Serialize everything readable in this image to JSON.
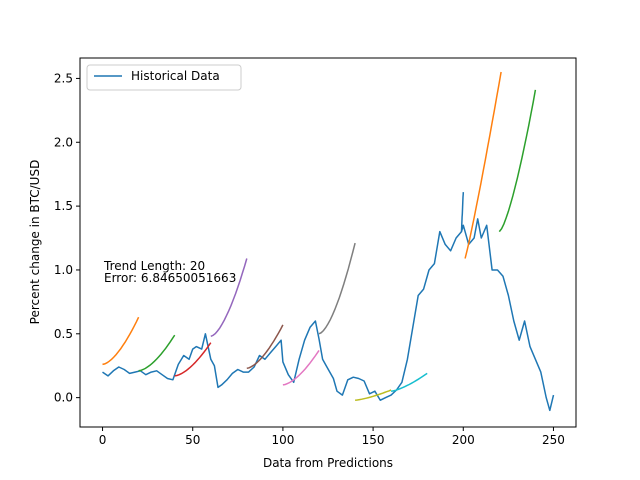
{
  "chart_data": {
    "type": "line",
    "xlabel": "Data from Predictions",
    "ylabel": "Percent change in BTC/USD",
    "xlim": [
      -12.5,
      262.5
    ],
    "ylim": [
      -0.23,
      2.66
    ],
    "xticks": [
      0,
      50,
      100,
      150,
      200,
      250
    ],
    "yticks": [
      0.0,
      0.5,
      1.0,
      1.5,
      2.0,
      2.5
    ],
    "xtick_labels": [
      "0",
      "50",
      "100",
      "150",
      "200",
      "250"
    ],
    "ytick_labels": [
      "0.0",
      "0.5",
      "1.0",
      "1.5",
      "2.0",
      "2.5"
    ],
    "legend": {
      "position": "top-left",
      "entries": [
        "Historical Data"
      ]
    },
    "annotations": [
      "Trend Length: 20",
      "Error: 6.84650051663"
    ],
    "historical": {
      "name": "Historical Data",
      "color": "#1f77b4",
      "x": [
        0,
        3,
        6,
        9,
        12,
        15,
        18,
        21,
        24,
        27,
        30,
        33,
        36,
        39,
        42,
        45,
        48,
        50,
        52,
        55,
        57,
        60,
        62,
        64,
        66,
        69,
        72,
        75,
        78,
        81,
        84,
        87,
        90,
        93,
        96,
        99,
        100,
        103,
        106,
        109,
        112,
        115,
        118,
        120,
        122,
        124,
        126,
        128,
        130,
        133,
        136,
        139,
        142,
        145,
        148,
        151,
        154,
        157,
        160,
        163,
        166,
        169,
        172,
        175,
        178,
        181,
        184,
        187,
        190,
        193,
        196,
        199,
        200,
        203,
        206,
        208,
        210,
        213,
        216,
        219,
        222,
        225,
        228,
        231,
        234,
        237,
        240,
        243,
        246,
        248,
        250
      ],
      "y": [
        0.2,
        0.17,
        0.21,
        0.24,
        0.22,
        0.19,
        0.2,
        0.21,
        0.18,
        0.2,
        0.21,
        0.18,
        0.15,
        0.14,
        0.26,
        0.33,
        0.3,
        0.38,
        0.4,
        0.38,
        0.5,
        0.3,
        0.25,
        0.08,
        0.1,
        0.14,
        0.19,
        0.22,
        0.2,
        0.2,
        0.24,
        0.33,
        0.3,
        0.35,
        0.4,
        0.45,
        0.28,
        0.18,
        0.12,
        0.3,
        0.45,
        0.55,
        0.6,
        0.46,
        0.3,
        0.25,
        0.2,
        0.15,
        0.05,
        0.02,
        0.14,
        0.16,
        0.15,
        0.13,
        0.03,
        0.05,
        -0.02,
        0.0,
        0.02,
        0.06,
        0.12,
        0.3,
        0.55,
        0.8,
        0.85,
        1.0,
        1.05,
        1.3,
        1.2,
        1.15,
        1.25,
        1.3,
        1.35,
        1.2,
        1.25,
        1.4,
        1.25,
        1.35,
        1.0,
        1.0,
        0.95,
        0.8,
        0.6,
        0.45,
        0.6,
        0.4,
        0.3,
        0.2,
        0.0,
        -0.1,
        0.02
      ]
    },
    "trends": [
      {
        "color": "#ff7f0e",
        "x": [
          0,
          20
        ],
        "y": [
          0.26,
          0.63
        ],
        "curve": 1.6
      },
      {
        "color": "#2ca02c",
        "x": [
          20,
          40
        ],
        "y": [
          0.21,
          0.49
        ],
        "curve": 1.6
      },
      {
        "color": "#d62728",
        "x": [
          40,
          60
        ],
        "y": [
          0.17,
          0.43
        ],
        "curve": 1.6
      },
      {
        "color": "#9467bd",
        "x": [
          60,
          80
        ],
        "y": [
          0.48,
          1.09
        ],
        "curve": 1.6
      },
      {
        "color": "#8c564b",
        "x": [
          80,
          100
        ],
        "y": [
          0.23,
          0.57
        ],
        "curve": 1.6
      },
      {
        "color": "#e377c2",
        "x": [
          100,
          120
        ],
        "y": [
          0.1,
          0.37
        ],
        "curve": 1.6
      },
      {
        "color": "#7f7f7f",
        "x": [
          120,
          140
        ],
        "y": [
          0.5,
          1.21
        ],
        "curve": 1.6
      },
      {
        "color": "#bcbd22",
        "x": [
          140,
          160
        ],
        "y": [
          -0.02,
          0.06
        ],
        "curve": 1.4
      },
      {
        "color": "#17becf",
        "x": [
          160,
          180
        ],
        "y": [
          0.05,
          0.19
        ],
        "curve": 1.4
      },
      {
        "color": "#1f77b4",
        "x": [
          199,
          200
        ],
        "y": [
          1.3,
          1.61
        ],
        "curve": 1.0
      },
      {
        "color": "#ff7f0e",
        "x": [
          201,
          221
        ],
        "y": [
          1.09,
          2.55
        ],
        "curve": 1.1
      },
      {
        "color": "#2ca02c",
        "x": [
          220,
          240
        ],
        "y": [
          1.3,
          2.41
        ],
        "curve": 1.4
      }
    ]
  }
}
